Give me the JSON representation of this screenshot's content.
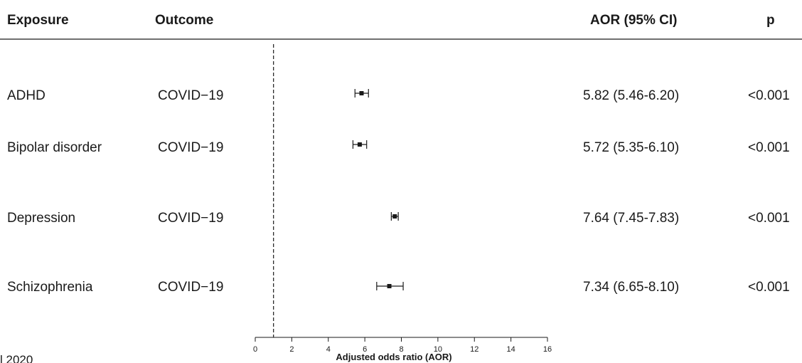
{
  "table": {
    "headers": {
      "exposure": "Exposure",
      "outcome": "Outcome",
      "aor_ci": "AOR (95% CI)",
      "p": "p"
    },
    "rows": [
      {
        "exposure": "ADHD",
        "outcome": "COVID−19",
        "aor_ci": "5.82 (5.46-6.20)",
        "p": "<0.001"
      },
      {
        "exposure": "Bipolar disorder",
        "outcome": "COVID−19",
        "aor_ci": "5.72 (5.35-6.10)",
        "p": "<0.001"
      },
      {
        "exposure": "Depression",
        "outcome": "COVID−19",
        "aor_ci": "7.64 (7.45-7.83)",
        "p": "<0.001"
      },
      {
        "exposure": "Schizophrenia",
        "outcome": "COVID−19",
        "aor_ci": "7.34 (6.65-8.10)",
        "p": "<0.001"
      }
    ]
  },
  "chart_data": {
    "type": "forest",
    "series": [
      {
        "name": "ADHD",
        "estimate": 5.82,
        "lower": 5.46,
        "upper": 6.2
      },
      {
        "name": "Bipolar disorder",
        "estimate": 5.72,
        "lower": 5.35,
        "upper": 6.1
      },
      {
        "name": "Depression",
        "estimate": 7.64,
        "lower": 7.45,
        "upper": 7.83
      },
      {
        "name": "Schizophrenia",
        "estimate": 7.34,
        "lower": 6.65,
        "upper": 8.1
      }
    ],
    "reference_line": 1,
    "xlim": [
      0,
      16
    ],
    "xticks": [
      0,
      2,
      4,
      6,
      8,
      10,
      12,
      14,
      16
    ],
    "xlabel": "Adjusted odds ratio (AOR)",
    "grid": false
  },
  "stray_text": "l 2020",
  "colors": {
    "ink": "#1a1a1a"
  }
}
